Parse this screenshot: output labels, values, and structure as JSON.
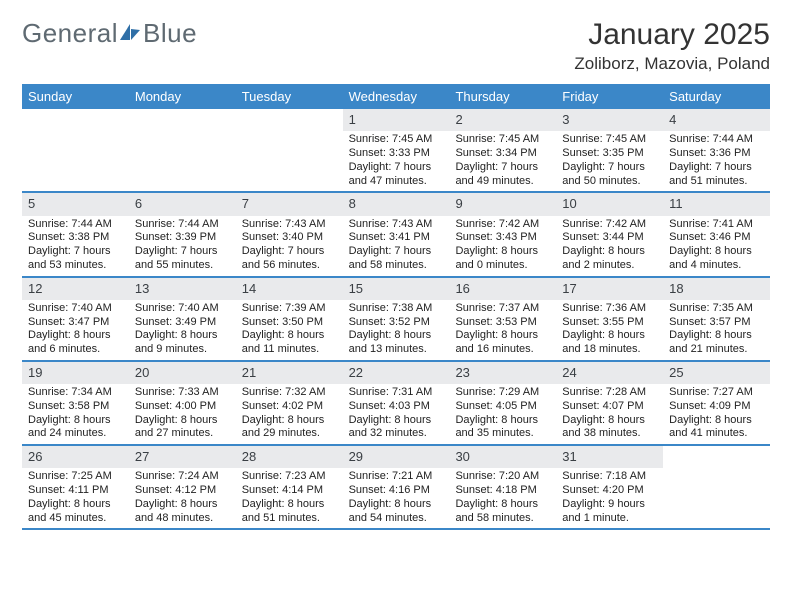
{
  "brand": {
    "word1": "General",
    "word2": "Blue",
    "color_gray": "#5f6a72",
    "color_blue": "#2f6fa7"
  },
  "title": "January 2025",
  "location": "Zoliborz, Mazovia, Poland",
  "colors": {
    "header_bg": "#3b87c8",
    "header_text": "#ffffff",
    "daynum_bg": "#e9eaec",
    "daynum_text": "#3a3f44",
    "rule": "#3b87c8",
    "body_text": "#222222",
    "page_bg": "#ffffff"
  },
  "day_names": [
    "Sunday",
    "Monday",
    "Tuesday",
    "Wednesday",
    "Thursday",
    "Friday",
    "Saturday"
  ],
  "weeks": [
    [
      {
        "day": ""
      },
      {
        "day": ""
      },
      {
        "day": ""
      },
      {
        "day": "1",
        "sunrise": "Sunrise: 7:45 AM",
        "sunset": "Sunset: 3:33 PM",
        "daylight": "Daylight: 7 hours and 47 minutes."
      },
      {
        "day": "2",
        "sunrise": "Sunrise: 7:45 AM",
        "sunset": "Sunset: 3:34 PM",
        "daylight": "Daylight: 7 hours and 49 minutes."
      },
      {
        "day": "3",
        "sunrise": "Sunrise: 7:45 AM",
        "sunset": "Sunset: 3:35 PM",
        "daylight": "Daylight: 7 hours and 50 minutes."
      },
      {
        "day": "4",
        "sunrise": "Sunrise: 7:44 AM",
        "sunset": "Sunset: 3:36 PM",
        "daylight": "Daylight: 7 hours and 51 minutes."
      }
    ],
    [
      {
        "day": "5",
        "sunrise": "Sunrise: 7:44 AM",
        "sunset": "Sunset: 3:38 PM",
        "daylight": "Daylight: 7 hours and 53 minutes."
      },
      {
        "day": "6",
        "sunrise": "Sunrise: 7:44 AM",
        "sunset": "Sunset: 3:39 PM",
        "daylight": "Daylight: 7 hours and 55 minutes."
      },
      {
        "day": "7",
        "sunrise": "Sunrise: 7:43 AM",
        "sunset": "Sunset: 3:40 PM",
        "daylight": "Daylight: 7 hours and 56 minutes."
      },
      {
        "day": "8",
        "sunrise": "Sunrise: 7:43 AM",
        "sunset": "Sunset: 3:41 PM",
        "daylight": "Daylight: 7 hours and 58 minutes."
      },
      {
        "day": "9",
        "sunrise": "Sunrise: 7:42 AM",
        "sunset": "Sunset: 3:43 PM",
        "daylight": "Daylight: 8 hours and 0 minutes."
      },
      {
        "day": "10",
        "sunrise": "Sunrise: 7:42 AM",
        "sunset": "Sunset: 3:44 PM",
        "daylight": "Daylight: 8 hours and 2 minutes."
      },
      {
        "day": "11",
        "sunrise": "Sunrise: 7:41 AM",
        "sunset": "Sunset: 3:46 PM",
        "daylight": "Daylight: 8 hours and 4 minutes."
      }
    ],
    [
      {
        "day": "12",
        "sunrise": "Sunrise: 7:40 AM",
        "sunset": "Sunset: 3:47 PM",
        "daylight": "Daylight: 8 hours and 6 minutes."
      },
      {
        "day": "13",
        "sunrise": "Sunrise: 7:40 AM",
        "sunset": "Sunset: 3:49 PM",
        "daylight": "Daylight: 8 hours and 9 minutes."
      },
      {
        "day": "14",
        "sunrise": "Sunrise: 7:39 AM",
        "sunset": "Sunset: 3:50 PM",
        "daylight": "Daylight: 8 hours and 11 minutes."
      },
      {
        "day": "15",
        "sunrise": "Sunrise: 7:38 AM",
        "sunset": "Sunset: 3:52 PM",
        "daylight": "Daylight: 8 hours and 13 minutes."
      },
      {
        "day": "16",
        "sunrise": "Sunrise: 7:37 AM",
        "sunset": "Sunset: 3:53 PM",
        "daylight": "Daylight: 8 hours and 16 minutes."
      },
      {
        "day": "17",
        "sunrise": "Sunrise: 7:36 AM",
        "sunset": "Sunset: 3:55 PM",
        "daylight": "Daylight: 8 hours and 18 minutes."
      },
      {
        "day": "18",
        "sunrise": "Sunrise: 7:35 AM",
        "sunset": "Sunset: 3:57 PM",
        "daylight": "Daylight: 8 hours and 21 minutes."
      }
    ],
    [
      {
        "day": "19",
        "sunrise": "Sunrise: 7:34 AM",
        "sunset": "Sunset: 3:58 PM",
        "daylight": "Daylight: 8 hours and 24 minutes."
      },
      {
        "day": "20",
        "sunrise": "Sunrise: 7:33 AM",
        "sunset": "Sunset: 4:00 PM",
        "daylight": "Daylight: 8 hours and 27 minutes."
      },
      {
        "day": "21",
        "sunrise": "Sunrise: 7:32 AM",
        "sunset": "Sunset: 4:02 PM",
        "daylight": "Daylight: 8 hours and 29 minutes."
      },
      {
        "day": "22",
        "sunrise": "Sunrise: 7:31 AM",
        "sunset": "Sunset: 4:03 PM",
        "daylight": "Daylight: 8 hours and 32 minutes."
      },
      {
        "day": "23",
        "sunrise": "Sunrise: 7:29 AM",
        "sunset": "Sunset: 4:05 PM",
        "daylight": "Daylight: 8 hours and 35 minutes."
      },
      {
        "day": "24",
        "sunrise": "Sunrise: 7:28 AM",
        "sunset": "Sunset: 4:07 PM",
        "daylight": "Daylight: 8 hours and 38 minutes."
      },
      {
        "day": "25",
        "sunrise": "Sunrise: 7:27 AM",
        "sunset": "Sunset: 4:09 PM",
        "daylight": "Daylight: 8 hours and 41 minutes."
      }
    ],
    [
      {
        "day": "26",
        "sunrise": "Sunrise: 7:25 AM",
        "sunset": "Sunset: 4:11 PM",
        "daylight": "Daylight: 8 hours and 45 minutes."
      },
      {
        "day": "27",
        "sunrise": "Sunrise: 7:24 AM",
        "sunset": "Sunset: 4:12 PM",
        "daylight": "Daylight: 8 hours and 48 minutes."
      },
      {
        "day": "28",
        "sunrise": "Sunrise: 7:23 AM",
        "sunset": "Sunset: 4:14 PM",
        "daylight": "Daylight: 8 hours and 51 minutes."
      },
      {
        "day": "29",
        "sunrise": "Sunrise: 7:21 AM",
        "sunset": "Sunset: 4:16 PM",
        "daylight": "Daylight: 8 hours and 54 minutes."
      },
      {
        "day": "30",
        "sunrise": "Sunrise: 7:20 AM",
        "sunset": "Sunset: 4:18 PM",
        "daylight": "Daylight: 8 hours and 58 minutes."
      },
      {
        "day": "31",
        "sunrise": "Sunrise: 7:18 AM",
        "sunset": "Sunset: 4:20 PM",
        "daylight": "Daylight: 9 hours and 1 minute."
      },
      {
        "day": ""
      }
    ]
  ]
}
